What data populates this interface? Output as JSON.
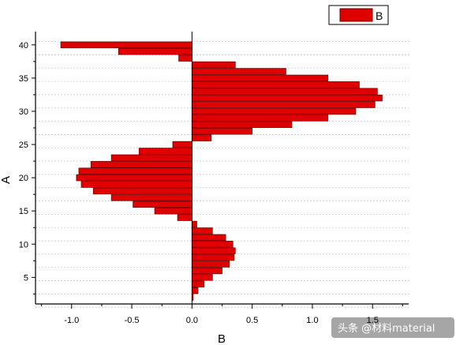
{
  "chart_data": {
    "type": "bar",
    "orientation": "horizontal",
    "xlabel": "B",
    "ylabel": "A",
    "xlim": [
      -1.3,
      1.8
    ],
    "ylim": [
      1,
      42
    ],
    "x_ticks": [
      -1.0,
      -0.5,
      0.0,
      0.5,
      1.0,
      1.5
    ],
    "x_tick_labels": [
      "-1.0",
      "-0.5",
      "0.0",
      "0.5",
      "1.0",
      "1.5"
    ],
    "y_ticks": [
      5,
      10,
      15,
      20,
      25,
      30,
      35,
      40
    ],
    "y_tick_labels": [
      "5",
      "10",
      "15",
      "20",
      "25",
      "30",
      "35",
      "40"
    ],
    "grid": "horizontal-dotted",
    "legend_position": "top-right",
    "bar_color": "#e00000",
    "bar_edge_color": "#6a0000",
    "series": [
      {
        "name": "B",
        "points": [
          {
            "y": 2,
            "x": 0.01
          },
          {
            "y": 3,
            "x": 0.05
          },
          {
            "y": 4,
            "x": 0.1
          },
          {
            "y": 5,
            "x": 0.17
          },
          {
            "y": 6,
            "x": 0.25
          },
          {
            "y": 7,
            "x": 0.31
          },
          {
            "y": 8,
            "x": 0.35
          },
          {
            "y": 9,
            "x": 0.36
          },
          {
            "y": 10,
            "x": 0.34
          },
          {
            "y": 11,
            "x": 0.28
          },
          {
            "y": 12,
            "x": 0.17
          },
          {
            "y": 13,
            "x": 0.04
          },
          {
            "y": 14,
            "x": -0.12
          },
          {
            "y": 15,
            "x": -0.31
          },
          {
            "y": 16,
            "x": -0.49
          },
          {
            "y": 17,
            "x": -0.67
          },
          {
            "y": 18,
            "x": -0.82
          },
          {
            "y": 19,
            "x": -0.92
          },
          {
            "y": 20,
            "x": -0.96
          },
          {
            "y": 21,
            "x": -0.94
          },
          {
            "y": 22,
            "x": -0.84
          },
          {
            "y": 23,
            "x": -0.67
          },
          {
            "y": 24,
            "x": -0.44
          },
          {
            "y": 25,
            "x": -0.16
          },
          {
            "y": 26,
            "x": 0.16
          },
          {
            "y": 27,
            "x": 0.5
          },
          {
            "y": 28,
            "x": 0.83
          },
          {
            "y": 29,
            "x": 1.13
          },
          {
            "y": 30,
            "x": 1.36
          },
          {
            "y": 31,
            "x": 1.52
          },
          {
            "y": 32,
            "x": 1.58
          },
          {
            "y": 33,
            "x": 1.54
          },
          {
            "y": 34,
            "x": 1.39
          },
          {
            "y": 35,
            "x": 1.13
          },
          {
            "y": 36,
            "x": 0.78
          },
          {
            "y": 37,
            "x": 0.36
          },
          {
            "y": 38,
            "x": -0.11
          },
          {
            "y": 39,
            "x": -0.61
          },
          {
            "y": 40,
            "x": -1.09
          }
        ]
      }
    ]
  },
  "watermark": {
    "text": "头条 @材料material"
  }
}
